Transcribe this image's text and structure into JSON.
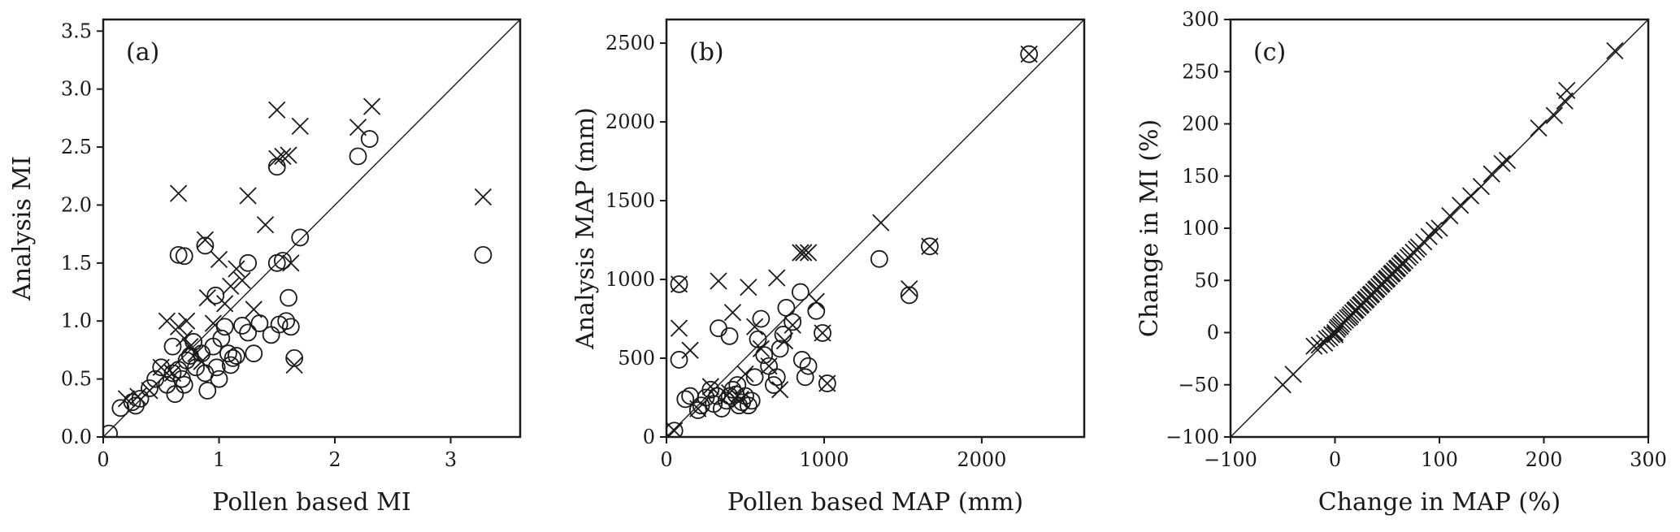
{
  "chart_data": [
    {
      "type": "scatter",
      "panel_label": "(a)",
      "xlabel": "Pollen based MI",
      "ylabel": "Analysis MI",
      "xlim": [
        0,
        3.6
      ],
      "ylim": [
        0,
        3.6
      ],
      "xticks": [
        0,
        1,
        2,
        3
      ],
      "yticks": [
        0.0,
        0.5,
        1.0,
        1.5,
        2.0,
        2.5,
        3.0,
        3.5
      ],
      "x_tick_labels": [
        "0",
        "1",
        "2",
        "3"
      ],
      "y_tick_labels": [
        "0.0",
        "0.5",
        "1.0",
        "1.5",
        "2.0",
        "2.5",
        "3.0",
        "3.5"
      ],
      "one_to_one_line": true,
      "series": [
        {
          "marker": "circle",
          "points": [
            [
              0.05,
              0.03
            ],
            [
              0.15,
              0.25
            ],
            [
              0.25,
              0.3
            ],
            [
              0.28,
              0.27
            ],
            [
              0.32,
              0.33
            ],
            [
              0.4,
              0.42
            ],
            [
              0.45,
              0.5
            ],
            [
              0.5,
              0.6
            ],
            [
              0.55,
              0.45
            ],
            [
              0.6,
              0.55
            ],
            [
              0.6,
              0.78
            ],
            [
              0.62,
              0.37
            ],
            [
              0.65,
              0.58
            ],
            [
              0.68,
              0.5
            ],
            [
              0.7,
              0.45
            ],
            [
              0.72,
              0.66
            ],
            [
              0.75,
              0.7
            ],
            [
              0.78,
              0.82
            ],
            [
              0.8,
              0.6
            ],
            [
              0.85,
              0.72
            ],
            [
              0.88,
              0.55
            ],
            [
              0.9,
              0.4
            ],
            [
              0.95,
              0.78
            ],
            [
              0.98,
              0.6
            ],
            [
              1.0,
              0.5
            ],
            [
              1.02,
              0.85
            ],
            [
              1.05,
              0.95
            ],
            [
              1.08,
              0.72
            ],
            [
              1.1,
              0.62
            ],
            [
              1.12,
              0.68
            ],
            [
              1.15,
              0.7
            ],
            [
              1.2,
              0.96
            ],
            [
              1.25,
              0.9
            ],
            [
              1.3,
              0.72
            ],
            [
              1.35,
              0.98
            ],
            [
              1.45,
              0.88
            ],
            [
              1.5,
              1.5
            ],
            [
              1.52,
              0.97
            ],
            [
              1.55,
              1.52
            ],
            [
              1.58,
              1.0
            ],
            [
              1.6,
              1.2
            ],
            [
              1.62,
              0.95
            ],
            [
              1.65,
              0.68
            ],
            [
              1.7,
              1.72
            ],
            [
              0.65,
              1.57
            ],
            [
              0.7,
              1.56
            ],
            [
              0.88,
              1.65
            ],
            [
              0.97,
              1.22
            ],
            [
              1.25,
              1.5
            ],
            [
              1.5,
              2.33
            ],
            [
              2.2,
              2.42
            ],
            [
              2.3,
              2.57
            ],
            [
              3.28,
              1.57
            ]
          ]
        },
        {
          "marker": "x",
          "points": [
            [
              0.2,
              0.33
            ],
            [
              0.3,
              0.35
            ],
            [
              0.4,
              0.4
            ],
            [
              0.5,
              0.6
            ],
            [
              0.55,
              1.0
            ],
            [
              0.6,
              0.55
            ],
            [
              0.65,
              0.95
            ],
            [
              0.7,
              0.85
            ],
            [
              0.72,
              1.0
            ],
            [
              0.75,
              0.78
            ],
            [
              0.8,
              0.72
            ],
            [
              0.85,
              0.65
            ],
            [
              0.88,
              1.7
            ],
            [
              0.9,
              1.2
            ],
            [
              0.95,
              0.98
            ],
            [
              1.0,
              1.53
            ],
            [
              1.05,
              1.15
            ],
            [
              1.1,
              1.3
            ],
            [
              1.15,
              1.45
            ],
            [
              1.2,
              1.35
            ],
            [
              1.25,
              2.08
            ],
            [
              1.3,
              1.1
            ],
            [
              1.4,
              1.83
            ],
            [
              1.5,
              2.4
            ],
            [
              1.55,
              2.42
            ],
            [
              1.6,
              2.43
            ],
            [
              1.62,
              1.5
            ],
            [
              1.65,
              0.62
            ],
            [
              1.7,
              2.68
            ],
            [
              1.5,
              2.82
            ],
            [
              0.65,
              2.1
            ],
            [
              2.2,
              2.67
            ],
            [
              2.32,
              2.85
            ],
            [
              3.28,
              2.07
            ]
          ]
        }
      ]
    },
    {
      "type": "scatter",
      "panel_label": "(b)",
      "xlabel": "Pollen based MAP (mm)",
      "ylabel": "Analysis MAP (mm)",
      "xlim": [
        0,
        2650
      ],
      "ylim": [
        0,
        2650
      ],
      "xticks": [
        0,
        1000,
        2000
      ],
      "yticks": [
        0,
        500,
        1000,
        1500,
        2000,
        2500
      ],
      "x_tick_labels": [
        "0",
        "1000",
        "2000"
      ],
      "y_tick_labels": [
        "0",
        "500",
        "1000",
        "1500",
        "2000",
        "2500"
      ],
      "one_to_one_line": true,
      "series": [
        {
          "marker": "circle",
          "points": [
            [
              50,
              40
            ],
            [
              80,
              490
            ],
            [
              80,
              970
            ],
            [
              120,
              240
            ],
            [
              150,
              260
            ],
            [
              200,
              170
            ],
            [
              220,
              200
            ],
            [
              250,
              250
            ],
            [
              280,
              300
            ],
            [
              300,
              210
            ],
            [
              320,
              260
            ],
            [
              330,
              690
            ],
            [
              350,
              180
            ],
            [
              380,
              230
            ],
            [
              400,
              260
            ],
            [
              400,
              640
            ],
            [
              420,
              300
            ],
            [
              440,
              270
            ],
            [
              450,
              330
            ],
            [
              460,
              200
            ],
            [
              480,
              220
            ],
            [
              500,
              260
            ],
            [
              520,
              200
            ],
            [
              540,
              230
            ],
            [
              560,
              380
            ],
            [
              580,
              620
            ],
            [
              600,
              750
            ],
            [
              620,
              520
            ],
            [
              650,
              450
            ],
            [
              680,
              330
            ],
            [
              700,
              380
            ],
            [
              720,
              560
            ],
            [
              740,
              650
            ],
            [
              760,
              820
            ],
            [
              800,
              730
            ],
            [
              850,
              920
            ],
            [
              860,
              490
            ],
            [
              880,
              380
            ],
            [
              900,
              450
            ],
            [
              950,
              800
            ],
            [
              990,
              660
            ],
            [
              1020,
              340
            ],
            [
              1350,
              1130
            ],
            [
              1540,
              900
            ],
            [
              1670,
              1210
            ],
            [
              2300,
              2430
            ]
          ]
        },
        {
          "marker": "x",
          "points": [
            [
              50,
              40
            ],
            [
              80,
              690
            ],
            [
              80,
              970
            ],
            [
              150,
              550
            ],
            [
              200,
              180
            ],
            [
              280,
              320
            ],
            [
              330,
              990
            ],
            [
              400,
              280
            ],
            [
              420,
              790
            ],
            [
              470,
              240
            ],
            [
              500,
              400
            ],
            [
              520,
              950
            ],
            [
              560,
              700
            ],
            [
              600,
              560
            ],
            [
              650,
              450
            ],
            [
              700,
              1010
            ],
            [
              720,
              300
            ],
            [
              750,
              610
            ],
            [
              800,
              710
            ],
            [
              850,
              1170
            ],
            [
              870,
              1170
            ],
            [
              900,
              1170
            ],
            [
              950,
              860
            ],
            [
              990,
              660
            ],
            [
              1020,
              340
            ],
            [
              1360,
              1360
            ],
            [
              1540,
              940
            ],
            [
              1670,
              1210
            ],
            [
              2300,
              2430
            ]
          ]
        }
      ]
    },
    {
      "type": "scatter",
      "panel_label": "(c)",
      "xlabel": "Change in MAP (%)",
      "ylabel": "Change in MI (%)",
      "xlim": [
        -100,
        300
      ],
      "ylim": [
        -100,
        300
      ],
      "xticks": [
        -100,
        0,
        100,
        200,
        300
      ],
      "yticks": [
        -100,
        -50,
        0,
        50,
        100,
        150,
        200,
        250,
        300
      ],
      "x_tick_labels": [
        "−100",
        "0",
        "100",
        "200",
        "300"
      ],
      "y_tick_labels": [
        "−100",
        "−50",
        "0",
        "50",
        "100",
        "150",
        "200",
        "250",
        "300"
      ],
      "one_to_one_line": true,
      "series": [
        {
          "marker": "x",
          "points": [
            [
              -50,
              -50
            ],
            [
              -40,
              -40
            ],
            [
              -20,
              -13
            ],
            [
              -15,
              -12
            ],
            [
              -10,
              -10
            ],
            [
              -8,
              -6
            ],
            [
              -5,
              -5
            ],
            [
              -3,
              -2
            ],
            [
              0,
              -2
            ],
            [
              0,
              0
            ],
            [
              2,
              3
            ],
            [
              3,
              5
            ],
            [
              5,
              6
            ],
            [
              6,
              8
            ],
            [
              8,
              10
            ],
            [
              10,
              12
            ],
            [
              12,
              14
            ],
            [
              14,
              15
            ],
            [
              15,
              17
            ],
            [
              17,
              19
            ],
            [
              19,
              21
            ],
            [
              20,
              22
            ],
            [
              22,
              24
            ],
            [
              24,
              26
            ],
            [
              25,
              27
            ],
            [
              27,
              29
            ],
            [
              29,
              31
            ],
            [
              30,
              32
            ],
            [
              32,
              34
            ],
            [
              34,
              36
            ],
            [
              35,
              37
            ],
            [
              37,
              39
            ],
            [
              39,
              41
            ],
            [
              40,
              42
            ],
            [
              42,
              44
            ],
            [
              44,
              46
            ],
            [
              45,
              47
            ],
            [
              47,
              49
            ],
            [
              49,
              51
            ],
            [
              50,
              52
            ],
            [
              52,
              54
            ],
            [
              54,
              56
            ],
            [
              55,
              57
            ],
            [
              57,
              59
            ],
            [
              59,
              61
            ],
            [
              60,
              62
            ],
            [
              62,
              64
            ],
            [
              64,
              66
            ],
            [
              65,
              67
            ],
            [
              67,
              69
            ],
            [
              70,
              72
            ],
            [
              72,
              74
            ],
            [
              75,
              77
            ],
            [
              78,
              80
            ],
            [
              80,
              82
            ],
            [
              85,
              87
            ],
            [
              90,
              92
            ],
            [
              95,
              98
            ],
            [
              100,
              100
            ],
            [
              110,
              112
            ],
            [
              120,
              122
            ],
            [
              130,
              131
            ],
            [
              140,
              140
            ],
            [
              150,
              152
            ],
            [
              160,
              162
            ],
            [
              165,
              165
            ],
            [
              195,
              196
            ],
            [
              210,
              208
            ],
            [
              220,
              222
            ],
            [
              222,
              232
            ],
            [
              268,
              270
            ]
          ]
        }
      ]
    }
  ]
}
